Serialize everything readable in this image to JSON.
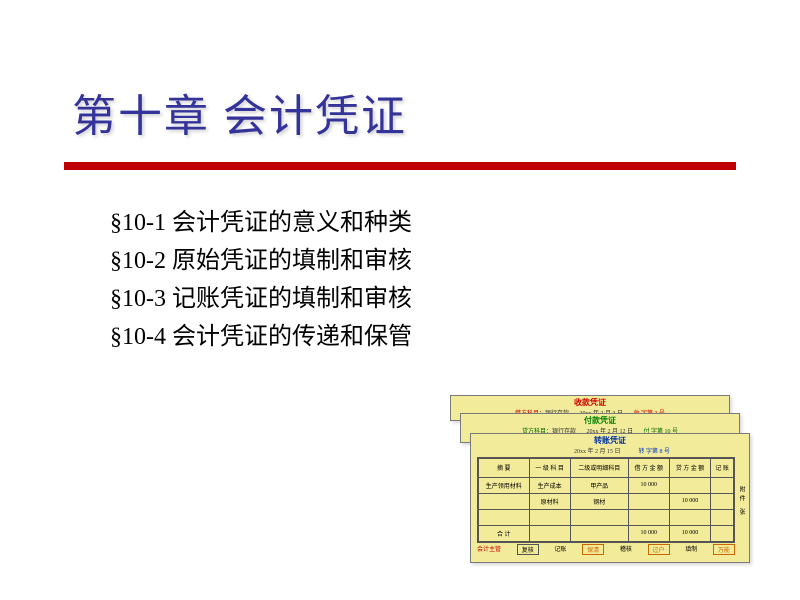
{
  "title": "第十章 会计凭证",
  "toc": [
    "§10-1 会计凭证的意义和种类",
    "§10-2 原始凭证的填制和审核",
    "§10-3 记账凭证的填制和审核",
    "§10-4 会计凭证的传递和保管"
  ],
  "vouchers": {
    "v1": {
      "title": "收款凭证",
      "left": "借方科目：",
      "left_val": "银行存款",
      "mid": "20xx 年 2 月 3 日",
      "right": "收 字第 3 号"
    },
    "v2": {
      "title": "付款凭证",
      "left": "贷方科目：",
      "left_val": "银行存款",
      "mid": "20xx 年 2 月 12 日",
      "right": "付 字第 10 号"
    },
    "v3": {
      "title": "转账凭证",
      "mid": "20xx 年 2 月 15 日",
      "right": "转 字第 8 号",
      "headers": [
        "摘 要",
        "一 级 科 目",
        "二级或明细科目",
        "借 方 金 额",
        "贷 方 金 额",
        "记 账"
      ],
      "rows": [
        [
          "生产领用材料",
          "生产成本",
          "甲产品",
          "10 000",
          "",
          ""
        ],
        [
          "",
          "原材料",
          "钢材",
          "",
          "10 000",
          ""
        ],
        [
          "",
          "",
          "",
          "",
          "",
          ""
        ]
      ],
      "total_row": [
        "合 计",
        "",
        "",
        "10 000",
        "10 000",
        ""
      ],
      "side": "附件   张",
      "footer": [
        "会计主管",
        "复核",
        "记账",
        "保清",
        "稽核",
        "过户",
        "填制",
        "万能"
      ]
    }
  },
  "colors": {
    "title": "#333399",
    "red_line": "#c00000",
    "voucher_bg": "#f2eb9a"
  }
}
